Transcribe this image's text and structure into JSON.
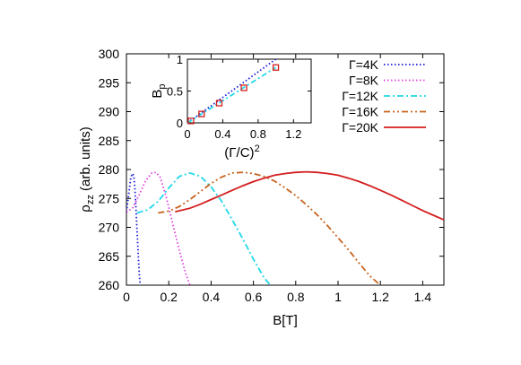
{
  "chart_data": [
    {
      "type": "line",
      "xlabel": "B[T]",
      "ylabel": "ρ_zz (arb. units)",
      "xlim": [
        0,
        1.5
      ],
      "ylim": [
        260,
        300
      ],
      "x_ticks": [
        "0",
        "0.2",
        "0.4",
        "0.6",
        "0.8",
        "1",
        "1.2",
        "1.4"
      ],
      "y_ticks": [
        "260",
        "265",
        "270",
        "275",
        "280",
        "285",
        "290",
        "295",
        "300"
      ],
      "grid": false,
      "legend": "top-right",
      "series": [
        {
          "name": "Γ=4K",
          "color": "#1a1ad6",
          "style": "dotted",
          "x": [
            0.0,
            0.01,
            0.02,
            0.025,
            0.03,
            0.035,
            0.04,
            0.045,
            0.05,
            0.055,
            0.06,
            0.065
          ],
          "y": [
            272.7,
            275.5,
            278.4,
            279.0,
            279.3,
            278.7,
            276.8,
            273.3,
            269.6,
            265.8,
            262.3,
            260.0
          ]
        },
        {
          "name": "Γ=8K",
          "color": "#e040e0",
          "style": "dotted",
          "x": [
            0.0,
            0.03,
            0.06,
            0.09,
            0.12,
            0.14,
            0.16,
            0.19,
            0.22,
            0.25,
            0.28,
            0.3
          ],
          "y": [
            272.6,
            273.4,
            275.6,
            278.0,
            279.4,
            279.5,
            278.6,
            275.0,
            270.4,
            266.0,
            262.0,
            260.0
          ]
        },
        {
          "name": "Γ=12K",
          "color": "#20d8e8",
          "style": "dashdot",
          "x": [
            0.05,
            0.1,
            0.15,
            0.2,
            0.25,
            0.3,
            0.35,
            0.4,
            0.45,
            0.5,
            0.55,
            0.6,
            0.65,
            0.68
          ],
          "y": [
            272.5,
            273.0,
            274.5,
            276.8,
            278.8,
            279.4,
            278.8,
            277.0,
            274.5,
            271.3,
            268.0,
            264.5,
            261.3,
            260.0
          ]
        },
        {
          "name": "Γ=16K",
          "color": "#c8641e",
          "style": "dashdotdot",
          "x": [
            0.15,
            0.2,
            0.25,
            0.3,
            0.35,
            0.4,
            0.45,
            0.5,
            0.55,
            0.6,
            0.65,
            0.7,
            0.75,
            0.8,
            0.85,
            0.9,
            0.95,
            1.0,
            1.05,
            1.1,
            1.15,
            1.2
          ],
          "y": [
            272.5,
            272.8,
            273.6,
            274.8,
            276.2,
            277.6,
            278.7,
            279.4,
            279.5,
            279.3,
            278.8,
            278.0,
            276.8,
            275.5,
            273.9,
            272.2,
            270.3,
            268.2,
            266.1,
            263.8,
            261.6,
            260.0
          ]
        },
        {
          "name": "Γ=20K",
          "color": "#d41e1e",
          "style": "solid",
          "x": [
            0.23,
            0.3,
            0.35,
            0.4,
            0.45,
            0.5,
            0.55,
            0.6,
            0.65,
            0.7,
            0.75,
            0.8,
            0.85,
            0.9,
            0.95,
            1.0,
            1.05,
            1.1,
            1.15,
            1.2,
            1.25,
            1.3,
            1.35,
            1.4,
            1.45,
            1.5
          ],
          "y": [
            272.7,
            273.3,
            274.0,
            274.8,
            275.6,
            276.4,
            277.2,
            277.9,
            278.5,
            279.0,
            279.3,
            279.5,
            279.6,
            279.5,
            279.3,
            279.0,
            278.5,
            277.9,
            277.2,
            276.4,
            275.6,
            274.7,
            273.8,
            272.9,
            272.1,
            271.3
          ]
        }
      ]
    },
    {
      "type": "scatter",
      "inset": true,
      "xlabel": "(Γ/C)²",
      "ylabel": "B_p",
      "xlim": [
        0,
        1.4
      ],
      "ylim": [
        0,
        1.0
      ],
      "x_ticks": [
        "0",
        "0.4",
        "0.8",
        "1.2"
      ],
      "y_ticks": [
        "0",
        "0.5",
        "1"
      ],
      "series": [
        {
          "name": "",
          "style": "markers",
          "color": "#d41e1e",
          "x": [
            0.04,
            0.16,
            0.36,
            0.64,
            1.0
          ],
          "y": [
            0.03,
            0.14,
            0.31,
            0.55,
            0.87
          ]
        },
        {
          "name": "",
          "style": "dotted-line",
          "color": "#1a1ad6",
          "x": [
            0.0,
            1.0
          ],
          "y": [
            0.0,
            1.0
          ]
        },
        {
          "name": "",
          "style": "dashdot-line",
          "color": "#20d8e8",
          "x": [
            0.0,
            1.0
          ],
          "y": [
            0.0,
            0.87
          ]
        }
      ]
    }
  ]
}
